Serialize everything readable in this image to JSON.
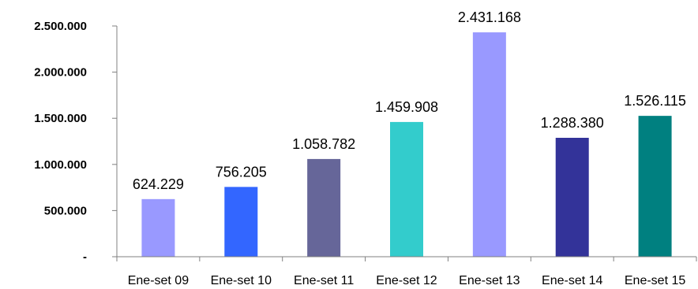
{
  "chart_data": {
    "type": "bar",
    "categories": [
      "Ene-set 09",
      "Ene-set 10",
      "Ene-set 11",
      "Ene-set 12",
      "Ene-set 13",
      "Ene-set 14",
      "Ene-set 15"
    ],
    "values": [
      624229,
      756205,
      1058782,
      1459908,
      2431168,
      1288380,
      1526115
    ],
    "value_labels": [
      "624.229",
      "756.205",
      "1.058.782",
      "1.459.908",
      "2.431.168",
      "1.288.380",
      "1.526.115"
    ],
    "bar_colors": [
      "#9999FF",
      "#3366FF",
      "#666699",
      "#33CCCC",
      "#9999FF",
      "#333399",
      "#008080"
    ],
    "yticks": [
      0,
      500000,
      1000000,
      1500000,
      2000000,
      2500000
    ],
    "ytick_labels": [
      "-",
      "500.000",
      "1.000.000",
      "1.500.000",
      "2.000.000",
      "2.500.000"
    ],
    "ylim": [
      0,
      2500000
    ],
    "grid": false,
    "legend": "none",
    "title": "",
    "xlabel": "",
    "ylabel": ""
  }
}
